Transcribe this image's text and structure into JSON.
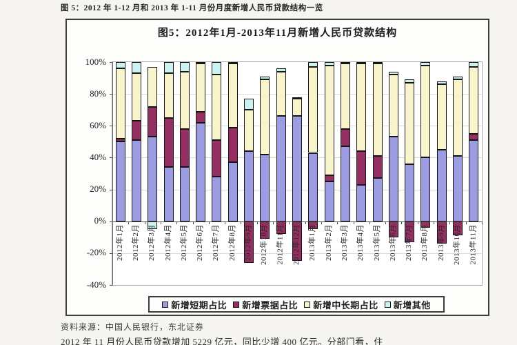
{
  "page": {
    "header_caption": "图 5：2012 年 1-12 月和 2013 年 1-11 月份月度新增人民币贷款结构一览",
    "source_line": "资料来源：中国人民银行，东北证券",
    "body_line": "2012 年 11 月份人民币贷款增加 5229 亿元，同比少增 400 亿元。分部门看，住"
  },
  "chart_data": {
    "type": "bar",
    "stacked": true,
    "title": "图5：2012年1月-2013年11月新增人民币贷款结构",
    "categories": [
      "2012年1月",
      "2012年2月",
      "2012年3月",
      "2012年4月",
      "2012年5月",
      "2012年6月",
      "2012年7月",
      "2012年8月",
      "2012年9月",
      "2012年10月",
      "2012年11月",
      "2012年12月",
      "2013年1月",
      "2013年2月",
      "2013年3月",
      "2013年4月",
      "2013年5月",
      "2013年6月",
      "2013年7月",
      "2013年8月",
      "2013年9月",
      "2013年10月",
      "2013年11月"
    ],
    "series": [
      {
        "name": "新增短期占比",
        "color": "#9b9ce2",
        "values": [
          50,
          51,
          53,
          34,
          34,
          62,
          28,
          37,
          44,
          42,
          66,
          66,
          43,
          25,
          47,
          23,
          27,
          53,
          36,
          40,
          45,
          41,
          51
        ]
      },
      {
        "name": "新增票据占比",
        "color": "#933061",
        "values": [
          2,
          12,
          19,
          31,
          24,
          7,
          23,
          22,
          -26,
          -11,
          -8,
          -25,
          -5,
          4,
          11,
          21,
          14,
          -10,
          -13,
          -4,
          -14,
          -9,
          4
        ]
      },
      {
        "name": "新增中长期占比",
        "color": "#f8f4cb",
        "values": [
          44,
          30,
          25,
          28,
          36,
          30,
          41,
          40,
          26,
          47,
          28,
          11,
          54,
          69,
          41,
          55,
          58,
          39,
          51,
          58,
          41,
          48,
          42
        ]
      },
      {
        "name": "新增其他",
        "color": "#cdf2f2",
        "values": [
          4,
          7,
          -5,
          7,
          6,
          1,
          8,
          1,
          7,
          2,
          2,
          1,
          3,
          2,
          1,
          1,
          1,
          2,
          2,
          2,
          2,
          2,
          3
        ]
      }
    ],
    "ylabel": "",
    "xlabel": "",
    "ylim": [
      -40,
      100
    ],
    "ytick_step": 20,
    "ytick_labels": [
      "100%",
      "80%",
      "60%",
      "40%",
      "20%",
      "0%",
      "-20%",
      "-40%"
    ],
    "grid": true,
    "legend_position": "bottom"
  }
}
